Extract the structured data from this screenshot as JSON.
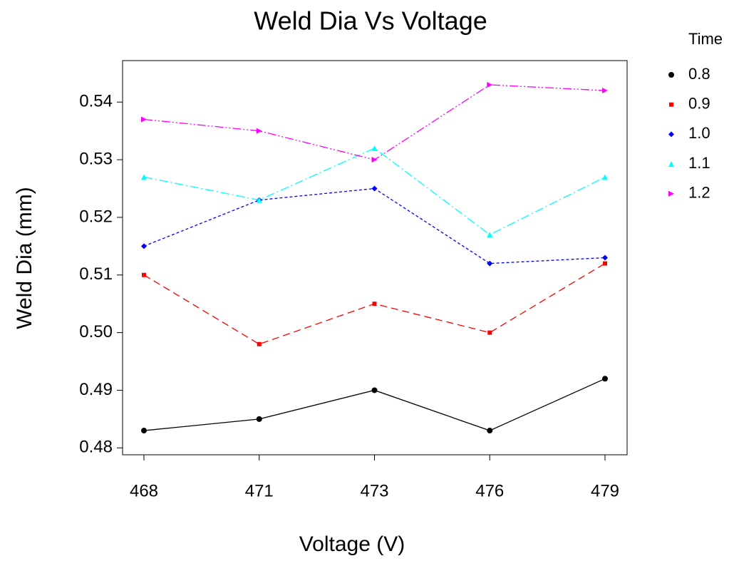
{
  "chart_data": {
    "type": "line",
    "title": "Weld Dia Vs Voltage",
    "x_label": "Voltage (V)",
    "y_label": "Weld Dia (mm)",
    "legend_title": "Time",
    "categories": [
      "468",
      "471",
      "473",
      "476",
      "479"
    ],
    "series": [
      {
        "name": "0.8",
        "color": "#000000",
        "values": [
          0.483,
          0.485,
          0.49,
          0.483,
          0.492
        ]
      },
      {
        "name": "0.9",
        "color": "#ff0000",
        "values": [
          0.51,
          0.498,
          0.505,
          0.5,
          0.512
        ]
      },
      {
        "name": "1.0",
        "color": "#0000ff",
        "values": [
          0.515,
          0.523,
          0.525,
          0.512,
          0.513
        ]
      },
      {
        "name": "1.1",
        "color": "#00ffff",
        "values": [
          0.527,
          0.523,
          0.532,
          0.517,
          0.527
        ]
      },
      {
        "name": "1.2",
        "color": "#ff00ff",
        "values": [
          0.537,
          0.535,
          0.53,
          0.543,
          0.542
        ]
      }
    ],
    "ylim": [
      0.4788,
      0.5472
    ],
    "yticks": [
      0.48,
      0.49,
      {
        "value": 0.5,
        "label": "0.50"
      },
      0.51,
      0.52,
      0.53,
      0.54
    ],
    "grid": false
  }
}
